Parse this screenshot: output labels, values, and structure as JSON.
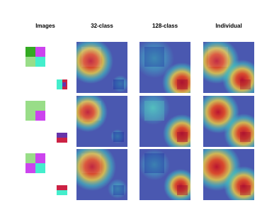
{
  "columns": [
    "Images",
    "32-class",
    "128-class",
    "Individual"
  ]
}
